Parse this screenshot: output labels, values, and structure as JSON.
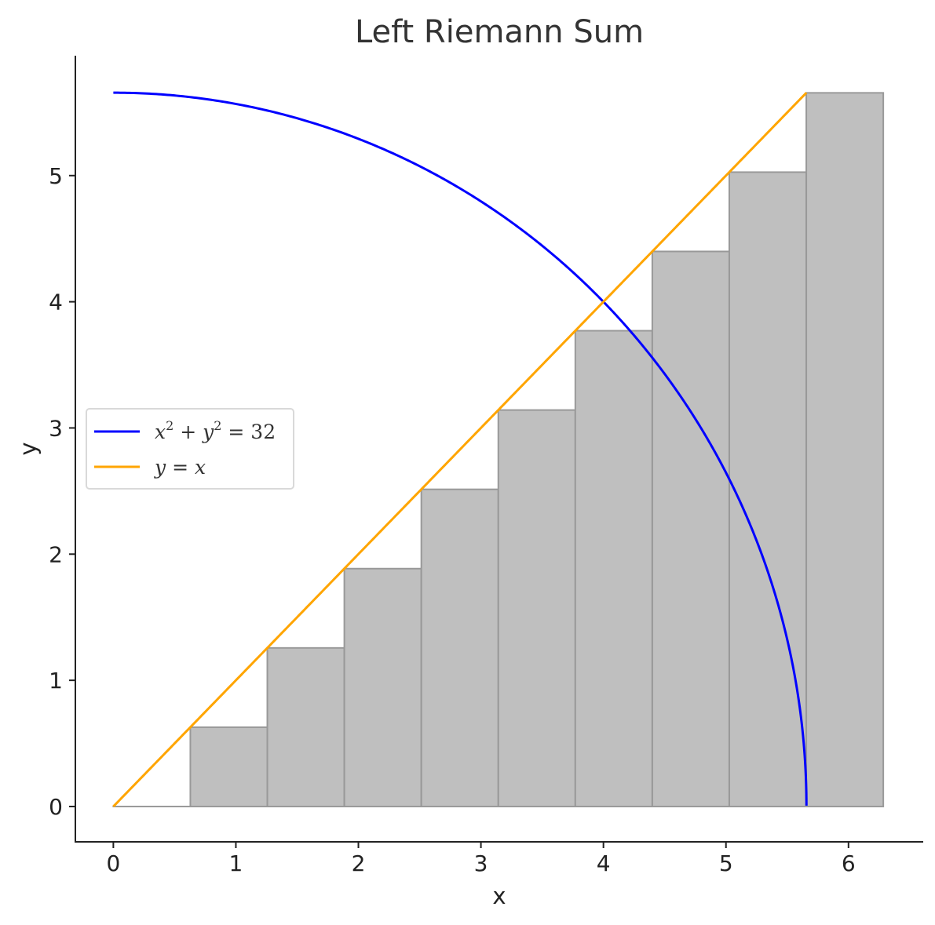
{
  "chart_data": {
    "type": "bar",
    "title": "Left Riemann Sum",
    "xlabel": "x",
    "ylabel": "y",
    "xlim": [
      -0.31,
      6.61
    ],
    "ylim": [
      -0.28,
      5.95
    ],
    "xticks": [
      "0",
      "1",
      "2",
      "3",
      "4",
      "5",
      "6"
    ],
    "yticks": [
      "0",
      "1",
      "2",
      "3",
      "4",
      "5"
    ],
    "grid": false,
    "legend_position": "center-left",
    "bars": {
      "edges": [
        0,
        0.6284,
        1.2568,
        1.8852,
        2.5136,
        3.142,
        3.7704,
        4.3988,
        5.0272,
        5.6556,
        6.284
      ],
      "heights": [
        0,
        0.6284,
        1.2568,
        1.8852,
        2.5136,
        3.142,
        3.7704,
        4.3988,
        5.0272,
        5.6556
      ],
      "color": "#bfbfbf",
      "edgecolor": "#999999"
    },
    "series": [
      {
        "legend_base": "x",
        "legend_mid": " + y",
        "legend_tail": " = 32",
        "color": "#0000ff",
        "function": "sqrt(32 - x^2)",
        "x_range": [
          0,
          5.65685
        ]
      },
      {
        "legend_label": "y = x",
        "color": "#ffa500",
        "function": "x",
        "x_range": [
          0,
          5.65685
        ]
      }
    ]
  }
}
